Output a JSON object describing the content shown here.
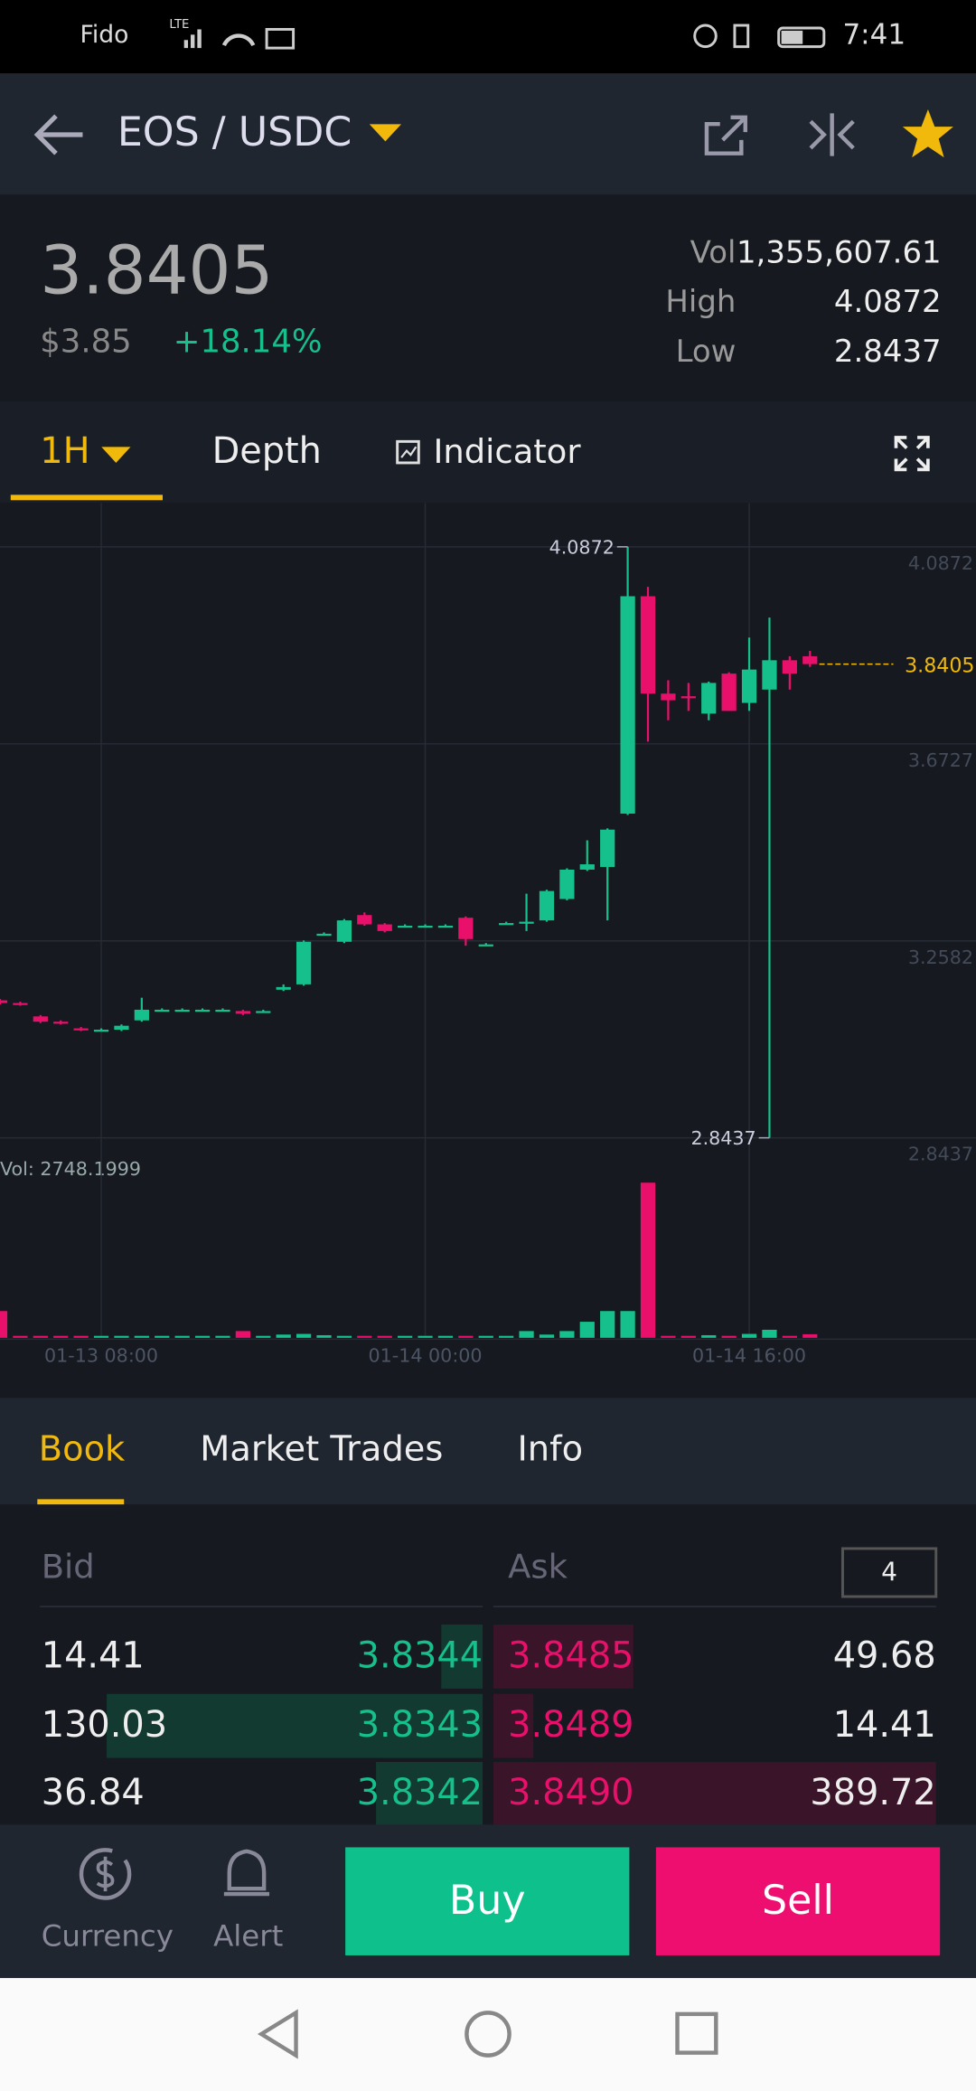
{
  "status_bar": {
    "carrier": "Fido",
    "network": "LTE",
    "time": "7:41"
  },
  "header": {
    "pair": "EOS / USDC"
  },
  "ticker": {
    "last": "3.8405",
    "usd": "$3.85",
    "change": "+18.14%",
    "stats": [
      {
        "label": "Vol",
        "value": "1,355,607.61"
      },
      {
        "label": "High",
        "value": "4.0872"
      },
      {
        "label": "Low",
        "value": "2.8437"
      }
    ]
  },
  "chart_tabs": {
    "interval": "1H",
    "depth": "Depth",
    "indicator": "Indicator"
  },
  "chart": {
    "type": "candlestick",
    "up_color": "#16c08c",
    "down_color": "#e8106a",
    "candles": [
      [
        3.1329,
        3.1357,
        3.1245,
        3.1273
      ],
      [
        3.1273,
        3.1301,
        3.1217,
        3.1245
      ],
      [
        3.0992,
        3.102,
        3.0852,
        3.088
      ],
      [
        3.088,
        3.0908,
        3.0823,
        3.0852
      ],
      [
        3.074,
        3.0768,
        3.0683,
        3.0712
      ],
      [
        3.0712,
        3.074,
        3.0683,
        3.0712
      ],
      [
        3.0712,
        3.0823,
        3.0683,
        3.0795
      ],
      [
        3.0908,
        3.1385,
        3.088,
        3.1132
      ],
      [
        3.1132,
        3.116,
        3.1104,
        3.1132
      ],
      [
        3.1132,
        3.116,
        3.1104,
        3.1132
      ],
      [
        3.1132,
        3.116,
        3.1104,
        3.1132
      ],
      [
        3.1132,
        3.116,
        3.1104,
        3.1132
      ],
      [
        3.1104,
        3.1132,
        3.102,
        3.1048
      ],
      [
        3.1104,
        3.1132,
        3.1076,
        3.1104
      ],
      [
        3.1553,
        3.1665,
        3.1525,
        3.1609
      ],
      [
        3.1666,
        3.259,
        3.1638,
        3.2562
      ],
      [
        3.2731,
        3.2759,
        3.2703,
        3.2731
      ],
      [
        3.2562,
        3.304,
        3.2534,
        3.3012
      ],
      [
        3.3124,
        3.318,
        3.29,
        3.2928
      ],
      [
        3.2928,
        3.2956,
        3.276,
        3.2788
      ],
      [
        3.29,
        3.2928,
        3.2872,
        3.29
      ],
      [
        3.29,
        3.2928,
        3.2872,
        3.29
      ],
      [
        3.29,
        3.2928,
        3.2872,
        3.29
      ],
      [
        3.3068,
        3.3096,
        3.2479,
        3.2619
      ],
      [
        3.2507,
        3.2535,
        3.2479,
        3.2507
      ],
      [
        3.2956,
        3.2984,
        3.2928,
        3.2956
      ],
      [
        3.2956,
        3.3574,
        3.2788,
        3.2984
      ],
      [
        3.3012,
        3.3658,
        3.2984,
        3.363
      ],
      [
        3.3462,
        3.4108,
        3.3434,
        3.408
      ],
      [
        3.408,
        3.4697,
        3.4052,
        3.4192
      ],
      [
        3.4136,
        3.495,
        3.3012,
        3.4922
      ],
      [
        3.5258,
        4.0872,
        3.523,
        3.9833
      ],
      [
        3.9833,
        4.003,
        3.6774,
        3.7784
      ],
      [
        3.7784,
        3.8065,
        3.7223,
        3.7644
      ],
      [
        3.7728,
        3.8009,
        3.7419,
        3.77
      ],
      [
        3.7363,
        3.8037,
        3.7223,
        3.8009
      ],
      [
        3.8205,
        3.8233,
        3.7419,
        3.7419
      ],
      [
        3.7588,
        3.8963,
        3.7419,
        3.829
      ],
      [
        3.7869,
        3.9384,
        2.8437,
        3.8486
      ],
      [
        3.8486,
        3.857,
        3.7869,
        3.8205
      ],
      [
        3.857,
        3.8683,
        3.8346,
        3.8405
      ]
    ],
    "volumes": [
      20700,
      1500,
      1500,
      1500,
      1500,
      1500,
      1500,
      1500,
      1500,
      1500,
      1500,
      1500,
      5200,
      1500,
      2500,
      3000,
      2000,
      1500,
      1500,
      1500,
      1500,
      1500,
      1500,
      1500,
      1500,
      1500,
      5200,
      2500,
      5200,
      12400,
      20700,
      20700,
      120000,
      1500,
      1500,
      2000,
      1500,
      3000,
      6200,
      1500,
      2748.1999
    ],
    "volume_label": "Vol: 2748.1999",
    "ylim": [
      2.8102,
      4.1798
    ],
    "yticks": [
      4.0872,
      3.6727,
      3.2582,
      2.8437
    ],
    "xlim": [
      0,
      48.2
    ],
    "xticks": [
      {
        "value": 5,
        "label": "01-13 08:00"
      },
      {
        "value": 21,
        "label": "01-14 00:00"
      },
      {
        "value": 37,
        "label": "01-14 16:00"
      }
    ],
    "vol_ylim": [
      0,
      130000
    ],
    "high_index": 31,
    "low_index": 38,
    "grid": true
  },
  "book": {
    "tabs": [
      "Book",
      "Market Trades",
      "Info"
    ],
    "bid_header": "Bid",
    "ask_header": "Ask",
    "depth": "4",
    "rows": [
      {
        "bid_qty": "14.41",
        "bid_price": "3.8344",
        "ask_price": "3.8485",
        "ask_qty": "49.68"
      },
      {
        "bid_qty": "130.03",
        "bid_price": "3.8343",
        "ask_price": "3.8489",
        "ask_qty": "14.41"
      },
      {
        "bid_qty": "36.84",
        "bid_price": "3.8342",
        "ask_price": "3.8490",
        "ask_qty": "389.72"
      }
    ]
  },
  "footer": {
    "currency": "Currency",
    "alert": "Alert",
    "buy": "Buy",
    "sell": "Sell"
  }
}
